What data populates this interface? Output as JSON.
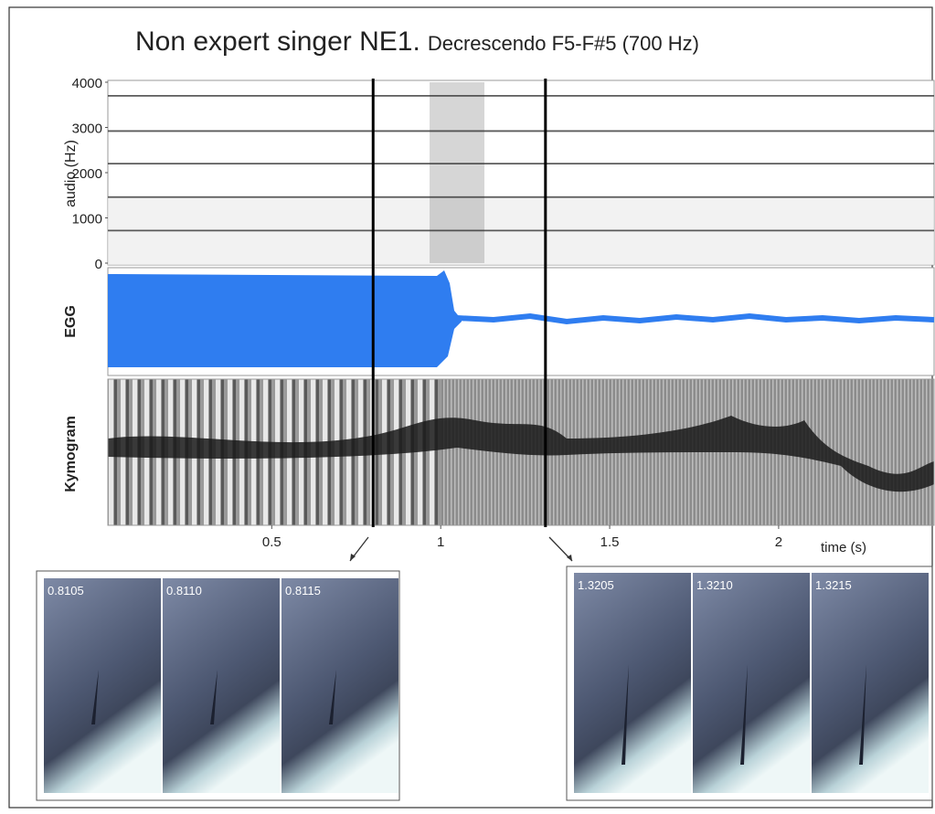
{
  "chart_data": {
    "type": "spectrogram",
    "title": "Non expert singer NE1.",
    "subtitle": "Decrescendo F5-F#5 (700 Hz)",
    "ylabel": "audio  (Hz)",
    "panel_labels": [
      "EGG",
      "Kymogram"
    ],
    "xlabel": "time  (s)",
    "xlim": [
      0.015,
      2.46
    ],
    "xticks": [
      0.5,
      1,
      1.5,
      2
    ],
    "ylim": [
      0,
      4000
    ],
    "yticks": [
      0,
      1000,
      2000,
      3000,
      4000
    ],
    "harmonics": [
      720,
      1460,
      2200,
      2920,
      3700
    ],
    "markers": [
      0.8,
      1.31
    ],
    "egg_color": "#2f7df0"
  },
  "frames": [
    {
      "labels": [
        "0.8105",
        "0.8110",
        "0.8115"
      ]
    },
    {
      "labels": [
        "1.3205",
        "1.3210",
        "1.3215"
      ]
    }
  ]
}
